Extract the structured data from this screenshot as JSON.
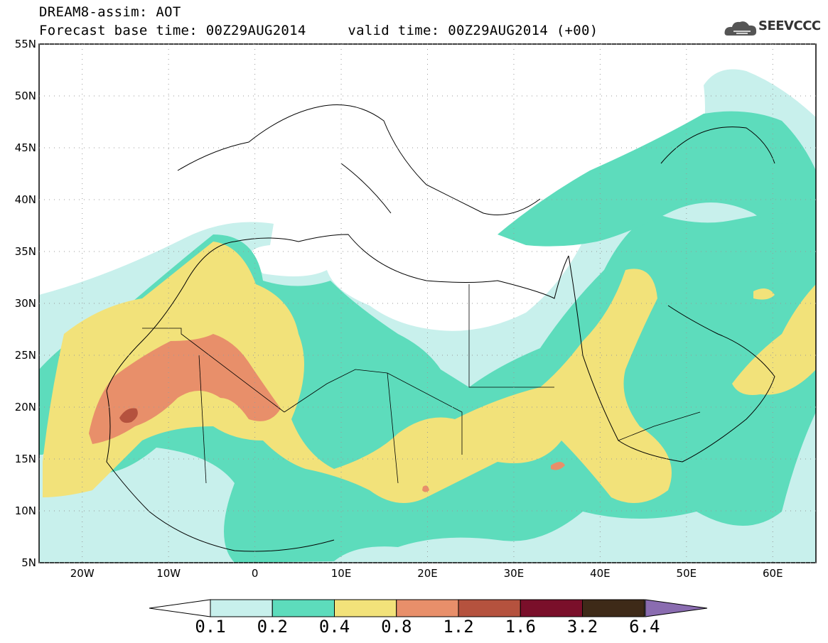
{
  "header": {
    "title_line1": "DREAM8-assim: AOT",
    "title_line2": "Forecast base time: 00Z29AUG2014     valid time: 00Z29AUG2014 (+00)",
    "logo_text": "SEEVCCC"
  },
  "map": {
    "lon_range": [
      -25,
      65
    ],
    "lat_range": [
      5,
      55
    ],
    "lat_ticks": [
      "5N",
      "10N",
      "15N",
      "20N",
      "25N",
      "30N",
      "35N",
      "40N",
      "45N",
      "50N",
      "55N"
    ],
    "lon_ticks": [
      "20W",
      "10W",
      "0",
      "10E",
      "20E",
      "30E",
      "40E",
      "50E",
      "60E"
    ]
  },
  "colorbar": {
    "labels": [
      "0.1",
      "0.2",
      "0.4",
      "0.8",
      "1.2",
      "1.6",
      "3.2",
      "6.4"
    ],
    "colors": [
      "#c8f0ec",
      "#5ddcbc",
      "#f2e27a",
      "#e88f6a",
      "#b5523e",
      "#7a0f2a",
      "#3e2a18",
      "#8a6cb0"
    ],
    "under_color": "#ffffff"
  },
  "colors": {
    "level_01": "#c8f0ec",
    "level_02": "#5ddcbc",
    "level_04": "#f2e27a",
    "level_08": "#e88f6a",
    "level_12": "#b5523e"
  }
}
